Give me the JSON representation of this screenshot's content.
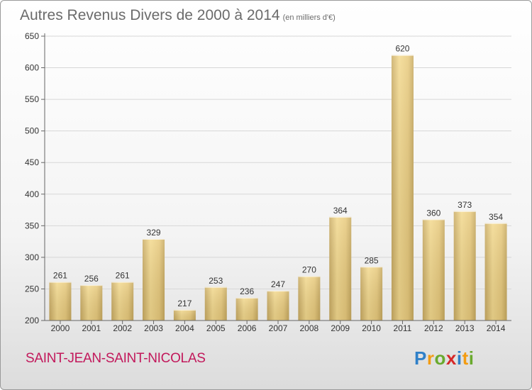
{
  "header": {
    "title": "Autres Revenus Divers de 2000 à 2014",
    "unit": "(en milliers d'€)"
  },
  "footer": {
    "place": "SAINT-JEAN-SAINT-NICOLAS",
    "brand": {
      "letters": [
        "P",
        "r",
        "o",
        "x",
        "i",
        "t",
        "i"
      ],
      "colors": [
        "#2f80c8",
        "#f39c12",
        "#6aaa2e",
        "#d62828",
        "#2f80c8",
        "#f39c12",
        "#6aaa2e"
      ]
    }
  },
  "chart_data": {
    "type": "bar",
    "categories": [
      "2000",
      "2001",
      "2002",
      "2003",
      "2004",
      "2005",
      "2006",
      "2007",
      "2008",
      "2009",
      "2010",
      "2011",
      "2012",
      "2013",
      "2014"
    ],
    "values": [
      261,
      256,
      261,
      329,
      217,
      253,
      236,
      247,
      270,
      364,
      285,
      620,
      360,
      373,
      354
    ],
    "data_labels": [
      "261",
      "256",
      "261",
      "329",
      "217",
      "253",
      "236",
      "247",
      "270",
      "364",
      "285",
      "620",
      "360",
      "373",
      "354"
    ],
    "ylim": [
      200,
      650
    ],
    "yticks": [
      200,
      250,
      300,
      350,
      400,
      450,
      500,
      550,
      600,
      650
    ],
    "grid": true,
    "bar_color": "#e3c67f"
  }
}
